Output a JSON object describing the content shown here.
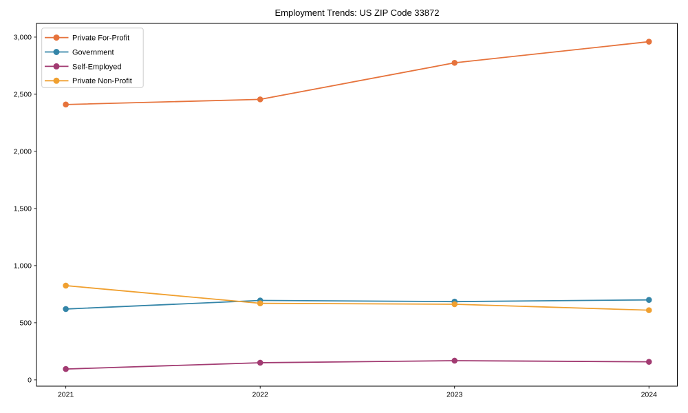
{
  "chart_data": {
    "type": "line",
    "title": "Employment Trends: US ZIP Code 33872",
    "x": [
      2021,
      2022,
      2023,
      2024
    ],
    "xtick_labels": [
      "2021",
      "2022",
      "2023",
      "2024"
    ],
    "series": [
      {
        "name": "Private For-Profit",
        "color": "#E6733C",
        "values": [
          2410,
          2455,
          2775,
          2960
        ]
      },
      {
        "name": "Government",
        "color": "#3485A8",
        "values": [
          620,
          695,
          685,
          700
        ]
      },
      {
        "name": "Self-Employed",
        "color": "#A23B72",
        "values": [
          95,
          150,
          168,
          158
        ]
      },
      {
        "name": "Private Non-Profit",
        "color": "#F0A030",
        "values": [
          825,
          670,
          662,
          610
        ]
      }
    ],
    "yticks": [
      0,
      500,
      1000,
      1500,
      2000,
      2500,
      3000
    ],
    "ytick_labels": [
      "0",
      "500",
      "1,000",
      "1,500",
      "2,000",
      "2,500",
      "3,000"
    ],
    "xlim": [
      2020.849,
      2024.146
    ],
    "ylim": [
      -55,
      3120
    ],
    "grid": false,
    "legend_position": "upper-left",
    "legend_border_color": "#cccccc",
    "axis_color": "#000000",
    "text_color": "#000000"
  }
}
